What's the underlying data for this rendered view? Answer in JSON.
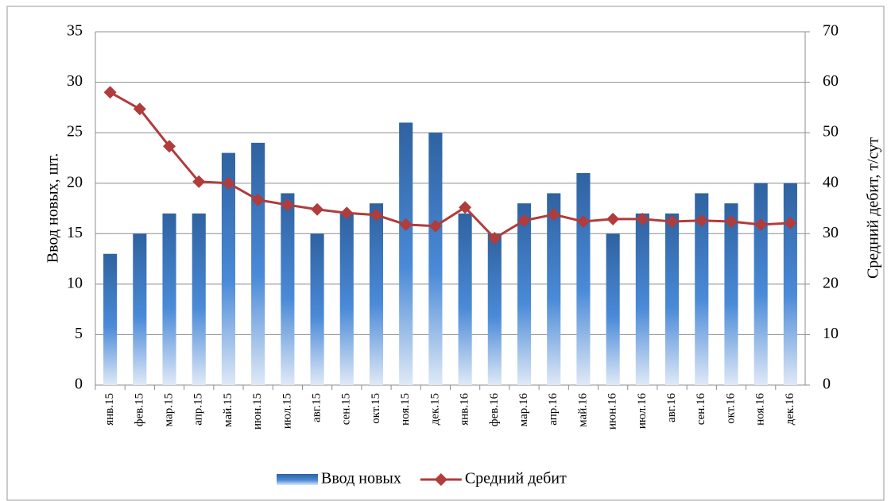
{
  "chart_data": {
    "type": "bar",
    "categories": [
      "янв.15",
      "фев.15",
      "мар.15",
      "апр.15",
      "май.15",
      "июн.15",
      "июл.15",
      "авг.15",
      "сен.15",
      "окт.15",
      "ноя.15",
      "дек.15",
      "янв.16",
      "фев.16",
      "мар.16",
      "апр.16",
      "май.16",
      "июн.16",
      "июл.16",
      "авг.16",
      "сен.16",
      "окт.16",
      "ноя.16",
      "дек.16"
    ],
    "series": [
      {
        "name": "Ввод новых",
        "type": "bar",
        "color": "#2f62a0",
        "values": [
          13,
          15,
          17,
          17,
          23,
          24,
          19,
          15,
          17,
          18,
          26,
          25,
          17,
          15,
          18,
          19,
          21,
          15,
          17,
          17,
          19,
          18,
          20,
          20
        ]
      },
      {
        "name": "Средний дебит",
        "type": "line",
        "axis": "y2",
        "color": "#b03c3c",
        "values": [
          58.0,
          54.7,
          47.3,
          40.3,
          40.0,
          36.7,
          35.7,
          34.8,
          34.1,
          33.7,
          31.8,
          31.5,
          35.2,
          29.1,
          32.6,
          33.8,
          32.4,
          32.9,
          32.9,
          32.4,
          32.6,
          32.4,
          31.8,
          32.1
        ]
      }
    ],
    "ylabel": "Ввод новых, шт.",
    "y2label": "Средний дебит, т/сут",
    "ylim": [
      0,
      35
    ],
    "yticks": [
      0,
      5,
      10,
      15,
      20,
      25,
      30,
      35
    ],
    "y2lim": [
      0,
      70
    ],
    "y2ticks": [
      0,
      10,
      20,
      30,
      40,
      50,
      60,
      70
    ],
    "grid": true,
    "legend": "bottom"
  }
}
